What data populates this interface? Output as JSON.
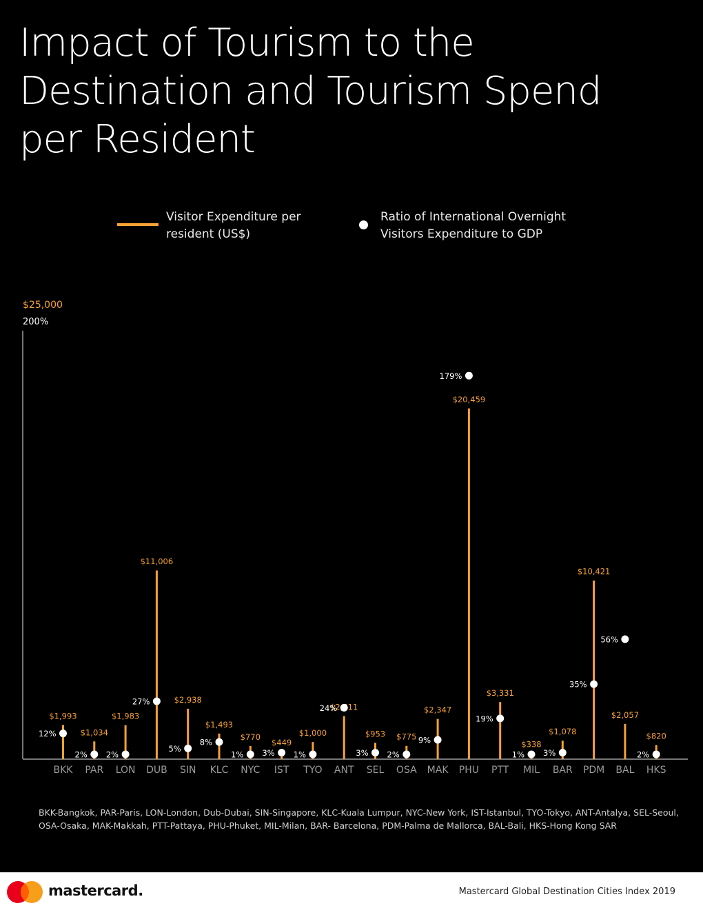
{
  "title": "Impact of Tourism to the Destination and Tourism Spend per Resident",
  "legend": {
    "bar_label": "Visitor Expenditure per resident (US$)",
    "dot_label": "Ratio of International Overnight Visitors Expenditure to GDP"
  },
  "colors": {
    "bar": "#F7A234",
    "dot": "#FFFFFF",
    "background": "#000000",
    "axis": "#777777",
    "tick": "#9a9a9a"
  },
  "chart_data": {
    "type": "bar",
    "categories": [
      "BKK",
      "PAR",
      "LON",
      "DUB",
      "SIN",
      "KLC",
      "NYC",
      "IST",
      "TYO",
      "ANT",
      "SEL",
      "OSA",
      "MAK",
      "PHU",
      "PTT",
      "MIL",
      "BAR",
      "PDM",
      "BAL",
      "HKS"
    ],
    "series": [
      {
        "name": "Visitor Expenditure per resident (US$)",
        "axis": "left",
        "values": [
          1993,
          1034,
          1983,
          11006,
          2938,
          1493,
          770,
          449,
          1000,
          2511,
          953,
          775,
          2347,
          20459,
          3331,
          338,
          1078,
          10421,
          2057,
          820
        ],
        "labels": [
          "$1,993",
          "$1,034",
          "$1,983",
          "$11,006",
          "$2,938",
          "$1,493",
          "$770",
          "$449",
          "$1,000",
          "$2,511",
          "$953",
          "$775",
          "$2,347",
          "$20,459",
          "$3,331",
          "$338",
          "$1,078",
          "$10,421",
          "$2,057",
          "$820"
        ]
      },
      {
        "name": "Ratio of International Overnight Visitors Expenditure to GDP",
        "axis": "right",
        "type": "scatter",
        "values": [
          12,
          2,
          2,
          27,
          5,
          8,
          1,
          3,
          1,
          24,
          3,
          2,
          9,
          179,
          19,
          1,
          3,
          35,
          56,
          2
        ],
        "labels": [
          "12%",
          "2%",
          "2%",
          "27%",
          "5%",
          "8%",
          "1%",
          "3%",
          "1%",
          "24%",
          "3%",
          "2%",
          "9%",
          "179%",
          "19%",
          "1%",
          "3%",
          "35%",
          "56%",
          "2%"
        ]
      }
    ],
    "ylim": [
      0,
      25000
    ],
    "ylim_ratio": [
      0,
      200
    ],
    "y_max_label": "$25,000",
    "y_ratio_max_label": "200%",
    "xlabel": "",
    "ylabel": ""
  },
  "abbreviations": "BKK-Bangkok, PAR-Paris, LON-London, Dub-Dubai, SIN-Singapore, KLC-Kuala Lumpur, NYC-New York, IST-Istanbul, TYO-Tokyo, ANT-Antalya, SEL-Seoul, OSA-Osaka, MAK-Makkah, PTT-Pattaya, PHU-Phuket, MIL-Milan, BAR- Barcelona, PDM-Palma de Mallorca, BAL-Bali,  HKS-Hong Kong SAR",
  "footer": {
    "brand": "mastercard.",
    "source": "Mastercard Global Destination Cities Index 2019"
  }
}
